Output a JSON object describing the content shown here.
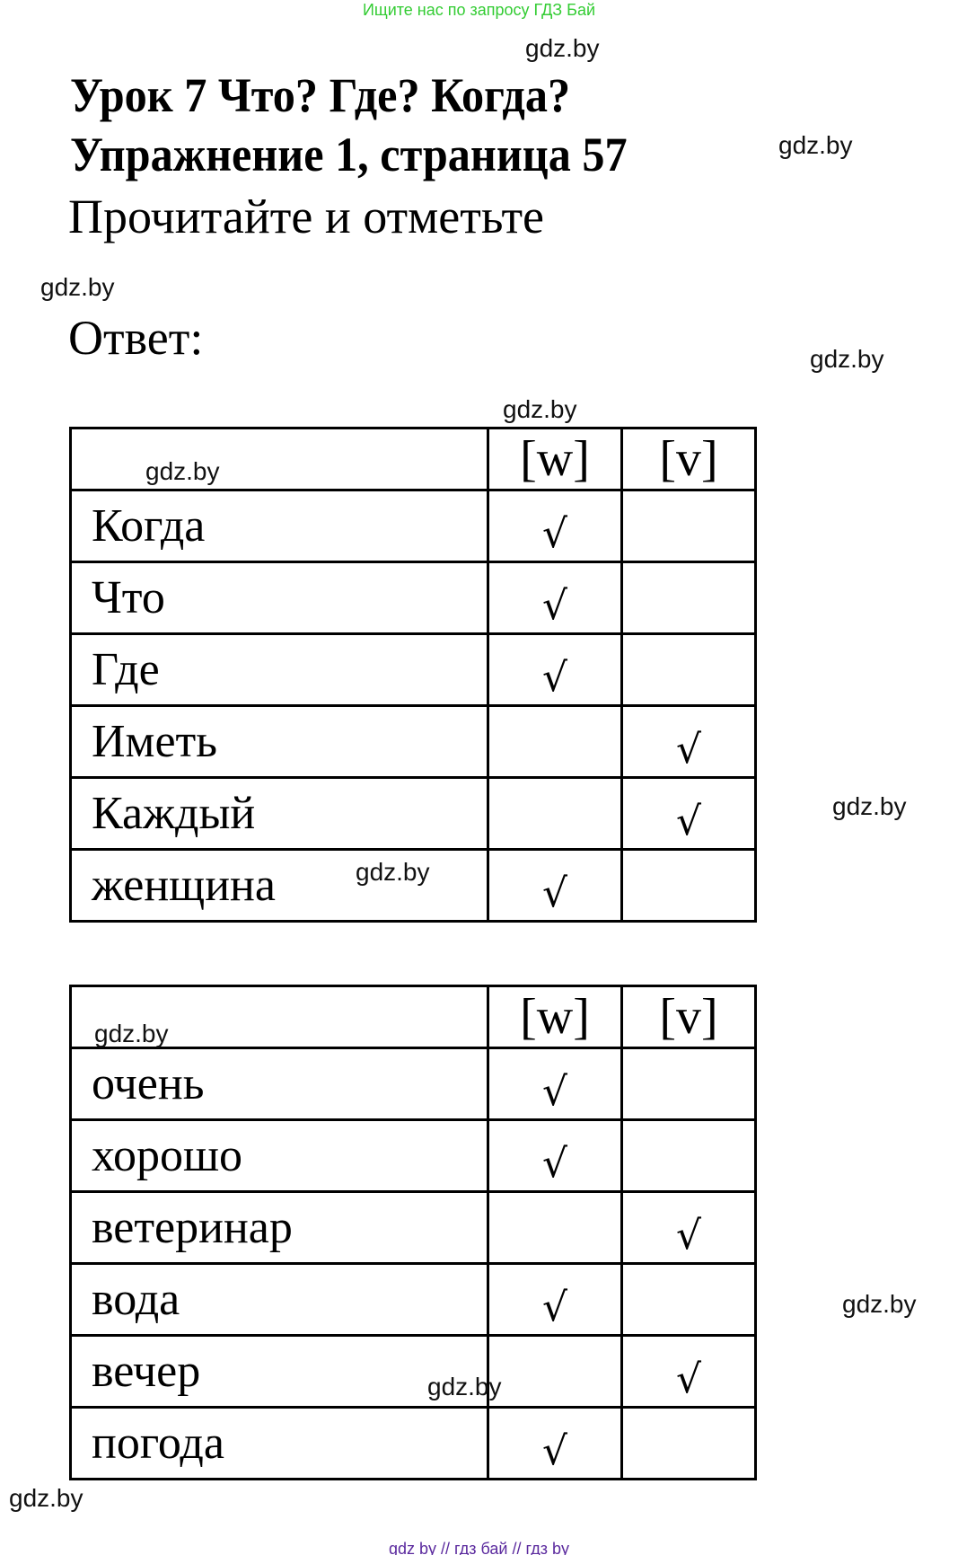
{
  "banner_top": "Ищите нас по запросу ГДЗ Бай",
  "banner_bottom": "gdz by  //  гдз бай  //  гдз by",
  "title_line1": "Урок 7 Что? Где? Когда?",
  "title_line2": "Упражнение 1, страница 57",
  "instruction": "Прочитайте и отметьте",
  "answer_label": "Ответ:",
  "watermark": "gdz.by",
  "check_symbol": "√",
  "columns": [
    "[w]",
    "[v]"
  ],
  "table1": [
    {
      "word": "Когда",
      "w": "√",
      "v": ""
    },
    {
      "word": "Что",
      "w": "√",
      "v": ""
    },
    {
      "word": "Где",
      "w": "√",
      "v": ""
    },
    {
      "word": "Иметь",
      "w": "",
      "v": "√"
    },
    {
      "word": "Каждый",
      "w": "",
      "v": "√"
    },
    {
      "word": "женщина",
      "w": "√",
      "v": ""
    }
  ],
  "table2": [
    {
      "word": "очень",
      "w": "√",
      "v": ""
    },
    {
      "word": "хорошо",
      "w": "√",
      "v": ""
    },
    {
      "word": "ветеринар",
      "w": "",
      "v": "√"
    },
    {
      "word": "вода",
      "w": "√",
      "v": ""
    },
    {
      "word": "вечер",
      "w": "",
      "v": "√"
    },
    {
      "word": "погода",
      "w": "√",
      "v": ""
    }
  ]
}
